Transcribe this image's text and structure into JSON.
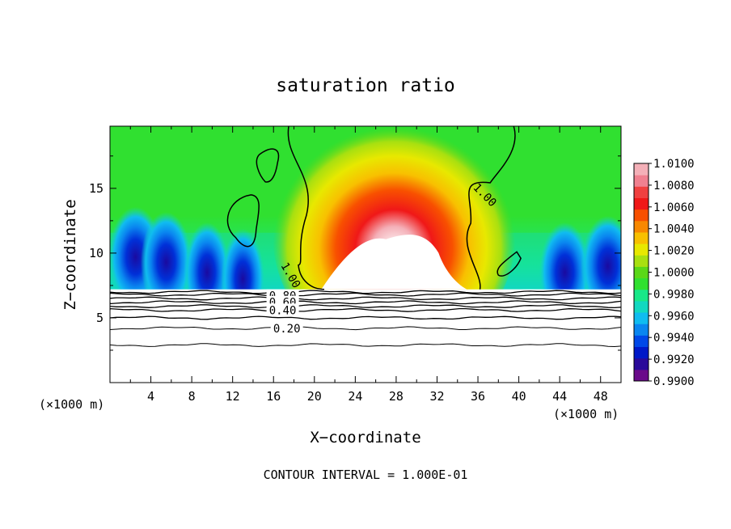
{
  "chart_data": {
    "type": "heatmap",
    "title": "saturation ratio",
    "xlabel": "X−coordinate",
    "ylabel": "Z−coordinate",
    "x_unit_left": "(×1000 m)",
    "x_unit_right": "(×1000 m)",
    "footer": "CONTOUR INTERVAL = 1.000E-01",
    "xlim": [
      0,
      50
    ],
    "ylim": [
      0,
      19.8
    ],
    "x_ticks": [
      4,
      8,
      12,
      16,
      20,
      24,
      28,
      32,
      36,
      40,
      44,
      48
    ],
    "y_ticks": [
      5,
      10,
      15
    ],
    "colorbar": {
      "ticks": [
        "1.0100",
        "1.0080",
        "1.0060",
        "1.0040",
        "1.0020",
        "1.0000",
        "0.9980",
        "0.9960",
        "0.9940",
        "0.9920",
        "0.9900"
      ],
      "range": [
        0.99,
        1.01
      ],
      "colors": [
        "#6a0a8a",
        "#2a0a9a",
        "#0018c8",
        "#0048e8",
        "#0a86f0",
        "#10bcf0",
        "#12d8c0",
        "#18e888",
        "#30e030",
        "#5ad818",
        "#a8e010",
        "#e8e800",
        "#f8c000",
        "#f88800",
        "#f85000",
        "#f01818",
        "#f04040",
        "#f08090",
        "#f4b0b8"
      ]
    },
    "cloud_base_z": 7.2,
    "contour_labels": [
      {
        "text": "1.00",
        "x": 36.7,
        "z": 14.5
      },
      {
        "text": "1.00",
        "x": 17.7,
        "z": 8.3
      },
      {
        "text": "0.80",
        "x": 16.9,
        "z": 6.7
      },
      {
        "text": "0.60",
        "x": 16.9,
        "z": 6.2
      },
      {
        "text": "0.40",
        "x": 16.9,
        "z": 5.6
      },
      {
        "text": "0.20",
        "x": 17.3,
        "z": 4.2
      }
    ],
    "subcloud_contours_z": [
      2.9,
      4.2,
      5.0,
      5.6,
      5.9,
      6.2,
      6.5,
      6.8,
      7.0
    ],
    "supersat_core": {
      "x_center": 27.8,
      "z_top": 15.2,
      "z_max": 1.01
    },
    "subsat_pockets": [
      {
        "x": 2.5,
        "z": 10.2,
        "value": 0.9905
      },
      {
        "x": 5.5,
        "z": 9.8,
        "value": 0.9915
      },
      {
        "x": 9.5,
        "z": 9.0,
        "value": 0.9935
      },
      {
        "x": 13.0,
        "z": 8.5,
        "value": 0.9945
      },
      {
        "x": 44.5,
        "z": 9.0,
        "value": 0.9915
      },
      {
        "x": 48.7,
        "z": 9.5,
        "value": 0.9905
      }
    ]
  }
}
